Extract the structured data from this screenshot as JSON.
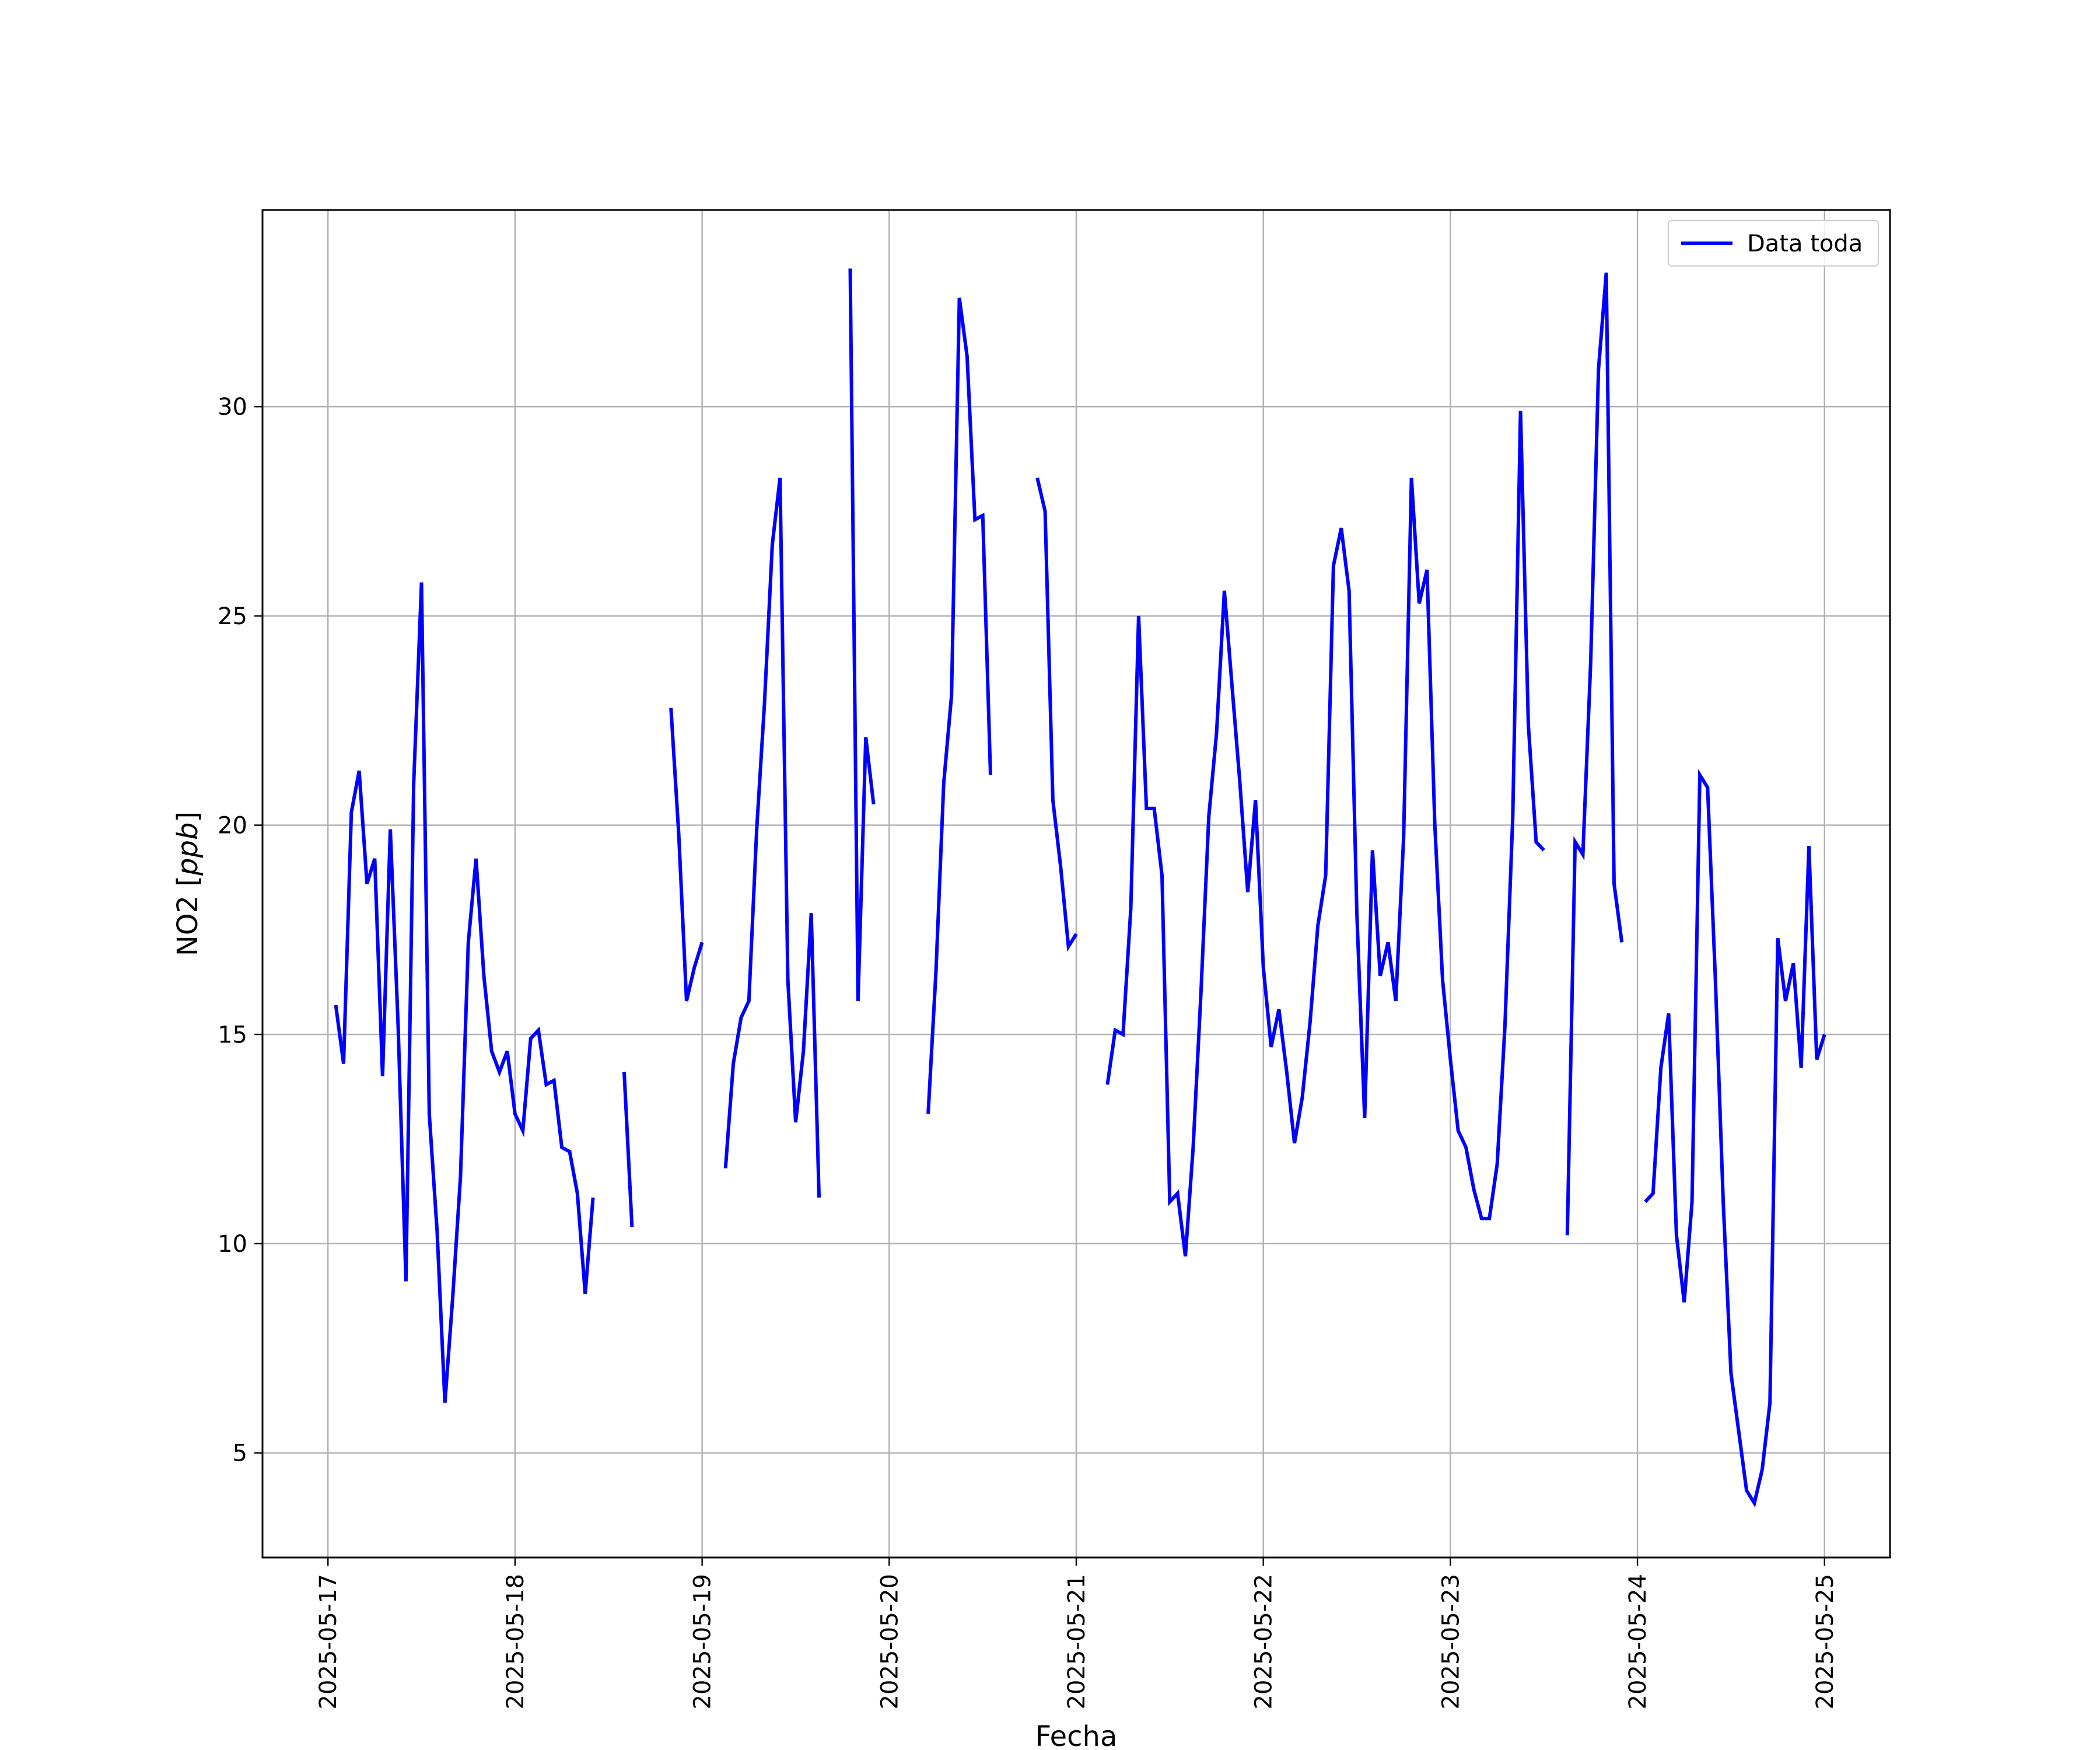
{
  "chart_data": {
    "type": "line",
    "title": "",
    "xlabel": "Fecha",
    "ylabel_main": "NO2 [",
    "ylabel_unit": "ppb",
    "ylabel_end": "]",
    "xlim": [
      "2025-05-16 15:36",
      "2025-05-25 08:24"
    ],
    "ylim": [
      2.5,
      34.7
    ],
    "grid": true,
    "legend_position": "upper right",
    "x_ticks": [
      "2025-05-17",
      "2025-05-18",
      "2025-05-19",
      "2025-05-20",
      "2025-05-21",
      "2025-05-22",
      "2025-05-23",
      "2025-05-24",
      "2025-05-25"
    ],
    "y_ticks": [
      "5",
      "10",
      "15",
      "20",
      "25",
      "30"
    ],
    "line_color": "#0000ff",
    "series": [
      {
        "name": "Data toda",
        "segments": [
          [
            [
              "2025-05-17 01:00",
              15.7
            ],
            [
              "2025-05-17 02:00",
              14.3
            ],
            [
              "2025-05-17 03:00",
              20.3
            ],
            [
              "2025-05-17 04:00",
              21.3
            ],
            [
              "2025-05-17 05:00",
              18.6
            ],
            [
              "2025-05-17 06:00",
              19.2
            ],
            [
              "2025-05-17 07:00",
              14.0
            ],
            [
              "2025-05-17 08:00",
              19.9
            ],
            [
              "2025-05-17 09:00",
              15.2
            ],
            [
              "2025-05-17 10:00",
              9.1
            ],
            [
              "2025-05-17 11:00",
              21.0
            ],
            [
              "2025-05-17 12:00",
              25.8
            ],
            [
              "2025-05-17 13:00",
              13.1
            ],
            [
              "2025-05-17 14:00",
              10.3
            ],
            [
              "2025-05-17 15:00",
              6.2
            ],
            [
              "2025-05-17 16:00",
              8.7
            ],
            [
              "2025-05-17 17:00",
              11.6
            ],
            [
              "2025-05-17 18:00",
              17.2
            ],
            [
              "2025-05-17 19:00",
              19.2
            ],
            [
              "2025-05-17 20:00",
              16.4
            ],
            [
              "2025-05-17 21:00",
              14.6
            ],
            [
              "2025-05-17 22:00",
              14.1
            ],
            [
              "2025-05-17 23:00",
              14.6
            ],
            [
              "2025-05-18 00:00",
              13.1
            ],
            [
              "2025-05-18 01:00",
              12.7
            ],
            [
              "2025-05-18 02:00",
              14.9
            ],
            [
              "2025-05-18 03:00",
              15.1
            ],
            [
              "2025-05-18 04:00",
              13.8
            ],
            [
              "2025-05-18 05:00",
              13.9
            ],
            [
              "2025-05-18 06:00",
              12.3
            ],
            [
              "2025-05-18 07:00",
              12.2
            ],
            [
              "2025-05-18 08:00",
              11.2
            ],
            [
              "2025-05-18 09:00",
              8.8
            ],
            [
              "2025-05-18 10:00",
              11.1
            ]
          ],
          [
            [
              "2025-05-18 14:00",
              14.1
            ],
            [
              "2025-05-18 15:00",
              10.4
            ]
          ],
          [
            [
              "2025-05-18 20:00",
              22.8
            ],
            [
              "2025-05-18 21:00",
              19.8
            ],
            [
              "2025-05-18 22:00",
              15.8
            ],
            [
              "2025-05-18 23:00",
              16.6
            ],
            [
              "2025-05-19 00:00",
              17.2
            ]
          ],
          [
            [
              "2025-05-19 03:00",
              11.8
            ],
            [
              "2025-05-19 04:00",
              14.3
            ],
            [
              "2025-05-19 05:00",
              15.4
            ],
            [
              "2025-05-19 06:00",
              15.8
            ],
            [
              "2025-05-19 07:00",
              19.9
            ],
            [
              "2025-05-19 08:00",
              22.9
            ],
            [
              "2025-05-19 09:00",
              26.7
            ],
            [
              "2025-05-19 10:00",
              28.3
            ],
            [
              "2025-05-19 11:00",
              16.3
            ],
            [
              "2025-05-19 12:00",
              12.9
            ],
            [
              "2025-05-19 13:00",
              14.6
            ],
            [
              "2025-05-19 14:00",
              17.9
            ],
            [
              "2025-05-19 15:00",
              11.1
            ]
          ],
          [
            [
              "2025-05-19 19:00",
              33.3
            ],
            [
              "2025-05-19 20:00",
              15.8
            ],
            [
              "2025-05-19 21:00",
              22.1
            ],
            [
              "2025-05-19 22:00",
              20.5
            ]
          ],
          [
            [
              "2025-05-20 05:00",
              13.1
            ],
            [
              "2025-05-20 06:00",
              16.5
            ],
            [
              "2025-05-20 07:00",
              21.0
            ],
            [
              "2025-05-20 08:00",
              23.1
            ],
            [
              "2025-05-20 09:00",
              32.6
            ],
            [
              "2025-05-20 10:00",
              31.2
            ],
            [
              "2025-05-20 11:00",
              27.3
            ],
            [
              "2025-05-20 12:00",
              27.4
            ],
            [
              "2025-05-20 13:00",
              21.2
            ]
          ],
          [
            [
              "2025-05-20 19:00",
              28.3
            ],
            [
              "2025-05-20 20:00",
              27.5
            ],
            [
              "2025-05-20 21:00",
              20.6
            ],
            [
              "2025-05-20 22:00",
              19.0
            ],
            [
              "2025-05-20 23:00",
              17.1
            ],
            [
              "2025-05-21 00:00",
              17.4
            ]
          ],
          [
            [
              "2025-05-21 04:00",
              13.8
            ],
            [
              "2025-05-21 05:00",
              15.1
            ],
            [
              "2025-05-21 06:00",
              15.0
            ],
            [
              "2025-05-21 07:00",
              18.0
            ],
            [
              "2025-05-21 08:00",
              25.0
            ],
            [
              "2025-05-21 09:00",
              20.4
            ],
            [
              "2025-05-21 10:00",
              20.4
            ],
            [
              "2025-05-21 11:00",
              18.8
            ],
            [
              "2025-05-21 12:00",
              11.0
            ],
            [
              "2025-05-21 13:00",
              11.2
            ],
            [
              "2025-05-21 14:00",
              9.7
            ],
            [
              "2025-05-21 15:00",
              12.3
            ],
            [
              "2025-05-21 16:00",
              16.0
            ],
            [
              "2025-05-21 17:00",
              20.2
            ],
            [
              "2025-05-21 18:00",
              22.2
            ],
            [
              "2025-05-21 19:00",
              25.6
            ],
            [
              "2025-05-21 20:00",
              23.3
            ],
            [
              "2025-05-21 21:00",
              21.0
            ],
            [
              "2025-05-21 22:00",
              18.4
            ],
            [
              "2025-05-21 23:00",
              20.6
            ],
            [
              "2025-05-22 00:00",
              16.6
            ],
            [
              "2025-05-22 01:00",
              14.7
            ],
            [
              "2025-05-22 02:00",
              15.6
            ],
            [
              "2025-05-22 03:00",
              14.1
            ],
            [
              "2025-05-22 04:00",
              12.4
            ],
            [
              "2025-05-22 05:00",
              13.5
            ],
            [
              "2025-05-22 06:00",
              15.3
            ],
            [
              "2025-05-22 07:00",
              17.6
            ],
            [
              "2025-05-22 08:00",
              18.8
            ],
            [
              "2025-05-22 09:00",
              26.2
            ],
            [
              "2025-05-22 10:00",
              27.1
            ],
            [
              "2025-05-22 11:00",
              25.6
            ],
            [
              "2025-05-22 12:00",
              17.9
            ],
            [
              "2025-05-22 13:00",
              13.0
            ],
            [
              "2025-05-22 14:00",
              19.4
            ],
            [
              "2025-05-22 15:00",
              16.4
            ],
            [
              "2025-05-22 16:00",
              17.2
            ],
            [
              "2025-05-22 17:00",
              15.8
            ],
            [
              "2025-05-22 18:00",
              19.7
            ],
            [
              "2025-05-22 19:00",
              28.3
            ],
            [
              "2025-05-22 20:00",
              25.3
            ],
            [
              "2025-05-22 21:00",
              26.1
            ],
            [
              "2025-05-22 22:00",
              20.0
            ],
            [
              "2025-05-22 23:00",
              16.3
            ],
            [
              "2025-05-23 00:00",
              14.4
            ],
            [
              "2025-05-23 01:00",
              12.7
            ],
            [
              "2025-05-23 02:00",
              12.3
            ],
            [
              "2025-05-23 03:00",
              11.3
            ],
            [
              "2025-05-23 04:00",
              10.6
            ],
            [
              "2025-05-23 05:00",
              10.6
            ],
            [
              "2025-05-23 06:00",
              11.9
            ],
            [
              "2025-05-23 07:00",
              15.2
            ],
            [
              "2025-05-23 08:00",
              20.2
            ],
            [
              "2025-05-23 09:00",
              29.9
            ],
            [
              "2025-05-23 10:00",
              22.4
            ],
            [
              "2025-05-23 11:00",
              19.6
            ],
            [
              "2025-05-23 12:00",
              19.4
            ]
          ],
          [
            [
              "2025-05-23 15:00",
              10.2
            ],
            [
              "2025-05-23 16:00",
              19.6
            ],
            [
              "2025-05-23 17:00",
              19.3
            ],
            [
              "2025-05-23 18:00",
              23.9
            ],
            [
              "2025-05-23 19:00",
              30.9
            ],
            [
              "2025-05-23 20:00",
              33.2
            ],
            [
              "2025-05-23 21:00",
              18.6
            ],
            [
              "2025-05-23 22:00",
              17.2
            ]
          ],
          [
            [
              "2025-05-24 01:00",
              11.0
            ],
            [
              "2025-05-24 02:00",
              11.2
            ],
            [
              "2025-05-24 03:00",
              14.2
            ],
            [
              "2025-05-24 04:00",
              15.5
            ],
            [
              "2025-05-24 05:00",
              10.2
            ],
            [
              "2025-05-24 06:00",
              8.6
            ],
            [
              "2025-05-24 07:00",
              11.0
            ],
            [
              "2025-05-24 08:00",
              21.2
            ],
            [
              "2025-05-24 09:00",
              20.9
            ],
            [
              "2025-05-24 10:00",
              16.3
            ],
            [
              "2025-05-24 11:00",
              11.0
            ],
            [
              "2025-05-24 12:00",
              6.9
            ],
            [
              "2025-05-24 13:00",
              5.5
            ],
            [
              "2025-05-24 14:00",
              4.1
            ],
            [
              "2025-05-24 15:00",
              3.8
            ],
            [
              "2025-05-24 16:00",
              4.6
            ],
            [
              "2025-05-24 17:00",
              6.2
            ],
            [
              "2025-05-24 18:00",
              17.3
            ],
            [
              "2025-05-24 19:00",
              15.8
            ],
            [
              "2025-05-24 20:00",
              16.7
            ],
            [
              "2025-05-24 21:00",
              14.2
            ],
            [
              "2025-05-24 22:00",
              19.5
            ],
            [
              "2025-05-24 23:00",
              14.4
            ],
            [
              "2025-05-25 00:00",
              15.0
            ]
          ]
        ]
      }
    ]
  }
}
